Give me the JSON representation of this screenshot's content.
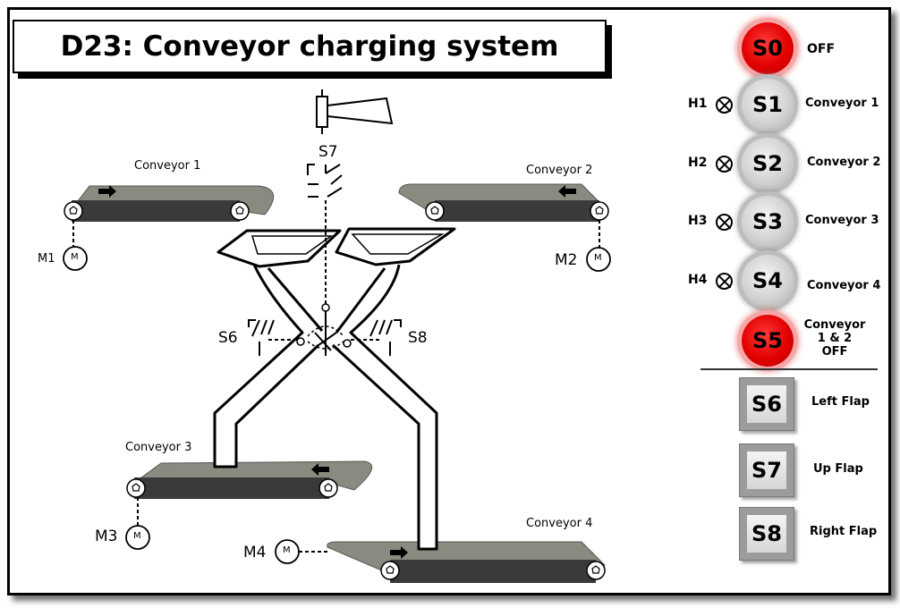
{
  "title": "D23: Conveyor charging system",
  "diagram": {
    "conveyor1": "Conveyor 1",
    "conveyor2": "Conveyor 2",
    "conveyor3": "Conveyor 3",
    "conveyor4": "Conveyor 4",
    "m1": "M1",
    "m2": "M2",
    "m3": "M3",
    "m4": "M4",
    "motor_symbol": "M",
    "s6": "S6",
    "s7": "S7",
    "s8": "S8"
  },
  "panel": {
    "s0": {
      "label": "S0",
      "caption": "OFF",
      "color": "#e20000"
    },
    "s1": {
      "label": "S1",
      "caption": "Conveyor 1",
      "lamp": "H1"
    },
    "s2": {
      "label": "S2",
      "caption": "Conveyor 2",
      "lamp": "H2"
    },
    "s3": {
      "label": "S3",
      "caption": "Conveyor 3",
      "lamp": "H3"
    },
    "s4": {
      "label": "S4",
      "caption": "Conveyor 4",
      "lamp": "H4"
    },
    "s5": {
      "label": "S5",
      "caption_line1": "Conveyor",
      "caption_line2": "1 & 2",
      "caption_line3": "OFF",
      "color": "#e20000"
    },
    "s6": {
      "label": "S6",
      "caption": "Left Flap"
    },
    "s7": {
      "label": "S7",
      "caption": "Up Flap"
    },
    "s8": {
      "label": "S8",
      "caption": "Right Flap"
    }
  }
}
